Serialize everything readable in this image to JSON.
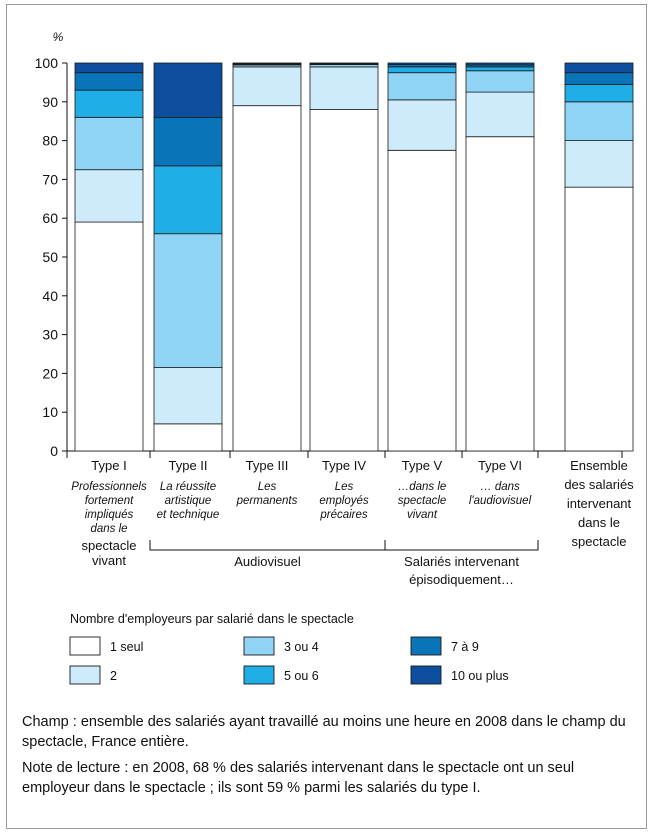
{
  "chart_data": {
    "type": "bar",
    "stacked": true,
    "y_unit": "%",
    "ylim": [
      0,
      100
    ],
    "yticks": [
      0,
      10,
      20,
      30,
      40,
      50,
      60,
      70,
      80,
      90,
      100
    ],
    "categories": [
      {
        "name": "Type I",
        "desc": [
          "Professionnels",
          "fortement",
          "impliqués",
          "dans le"
        ],
        "desc2": [
          "spectacle",
          "vivant"
        ]
      },
      {
        "name": "Type II",
        "desc": [
          "La réussite",
          "artistique",
          "et technique"
        ],
        "desc2": []
      },
      {
        "name": "Type III",
        "desc": [
          "Les",
          "permanents"
        ],
        "desc2": []
      },
      {
        "name": "Type IV",
        "desc": [
          "Les",
          "employés",
          "précaires"
        ],
        "desc2": []
      },
      {
        "name": "Type V",
        "desc": [
          "…dans le",
          "spectacle",
          "vivant"
        ],
        "desc2": []
      },
      {
        "name": "Type VI",
        "desc": [
          "… dans",
          "l'audiovisuel"
        ],
        "desc2": []
      },
      {
        "name": "",
        "desc": [],
        "desc2": [
          "Ensemble",
          "des salariés",
          "intervenant",
          "dans le",
          "spectacle"
        ]
      }
    ],
    "series": [
      {
        "name": "1 seul",
        "color": "#ffffff",
        "values": [
          59,
          7,
          89,
          88,
          77.5,
          81,
          68
        ]
      },
      {
        "name": "2",
        "color": "#cdebfb",
        "values": [
          13.5,
          14.5,
          10,
          11,
          13,
          11.5,
          12
        ]
      },
      {
        "name": "3 ou 4",
        "color": "#8fd4f5",
        "values": [
          13.5,
          34.5,
          0.5,
          0.6,
          7,
          5.5,
          10
        ]
      },
      {
        "name": "5 ou 6",
        "color": "#20aee6",
        "values": [
          7,
          17.5,
          0.2,
          0.2,
          1.5,
          1,
          4.5
        ]
      },
      {
        "name": "7 à 9",
        "color": "#0a74b9",
        "values": [
          4.5,
          12.5,
          0.1,
          0.1,
          0.6,
          0.5,
          3
        ]
      },
      {
        "name": "10 ou plus",
        "color": "#0d4f9e",
        "values": [
          2.5,
          14,
          0.2,
          0.1,
          0.4,
          0.5,
          2.5
        ]
      }
    ],
    "groups": [
      {
        "label": "Audiovisuel",
        "from": 1,
        "to": 3
      },
      {
        "label": "Salariés intervenant",
        "label2": "épisodiquement…",
        "from": 4,
        "to": 5
      }
    ],
    "legend_title": "Nombre d'employeurs par salarié dans le spectacle"
  },
  "notes": {
    "champ": "Champ : ensemble des salariés ayant travaillé au moins une heure en 2008 dans le champ du spectacle, France entière.",
    "lecture": "Note de lecture : en 2008, 68 % des salariés intervenant dans le spectacle ont un seul employeur dans le spectacle ; ils sont 59 % parmi les salariés du type I."
  }
}
